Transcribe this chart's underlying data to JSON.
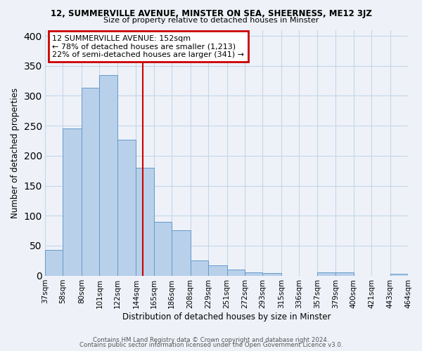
{
  "title_top": "12, SUMMERVILLE AVENUE, MINSTER ON SEA, SHEERNESS, ME12 3JZ",
  "title_sub": "Size of property relative to detached houses in Minster",
  "xlabel": "Distribution of detached houses by size in Minster",
  "ylabel": "Number of detached properties",
  "bin_labels": [
    "37sqm",
    "58sqm",
    "80sqm",
    "101sqm",
    "122sqm",
    "144sqm",
    "165sqm",
    "186sqm",
    "208sqm",
    "229sqm",
    "251sqm",
    "272sqm",
    "293sqm",
    "315sqm",
    "336sqm",
    "357sqm",
    "379sqm",
    "400sqm",
    "421sqm",
    "443sqm",
    "464sqm"
  ],
  "bin_edges": [
    37,
    58,
    80,
    101,
    122,
    144,
    165,
    186,
    208,
    229,
    251,
    272,
    293,
    315,
    336,
    357,
    379,
    400,
    421,
    443,
    464
  ],
  "bar_heights": [
    43,
    245,
    313,
    335,
    227,
    180,
    90,
    76,
    25,
    17,
    10,
    5,
    4,
    0,
    0,
    5,
    5,
    0,
    0,
    3
  ],
  "bar_color": "#b8d0ea",
  "bar_edgecolor": "#6699cc",
  "vline_x": 152,
  "vline_color": "#cc0000",
  "annotation_title": "12 SUMMERVILLE AVENUE: 152sqm",
  "annotation_line1": "← 78% of detached houses are smaller (1,213)",
  "annotation_line2": "22% of semi-detached houses are larger (341) →",
  "annotation_box_color": "#cc0000",
  "ylim": [
    0,
    410
  ],
  "yticks": [
    0,
    50,
    100,
    150,
    200,
    250,
    300,
    350,
    400
  ],
  "footer1": "Contains HM Land Registry data © Crown copyright and database right 2024.",
  "footer2": "Contains public sector information licensed under the Open Government Licence v3.0.",
  "bg_color": "#eef2f8",
  "grid_color": "#c5d5e8",
  "title_fontsize": 8.5,
  "sub_fontsize": 8.0,
  "axis_label_fontsize": 8.5,
  "tick_fontsize": 7.5,
  "annot_fontsize": 8.0,
  "footer_fontsize": 6.2
}
